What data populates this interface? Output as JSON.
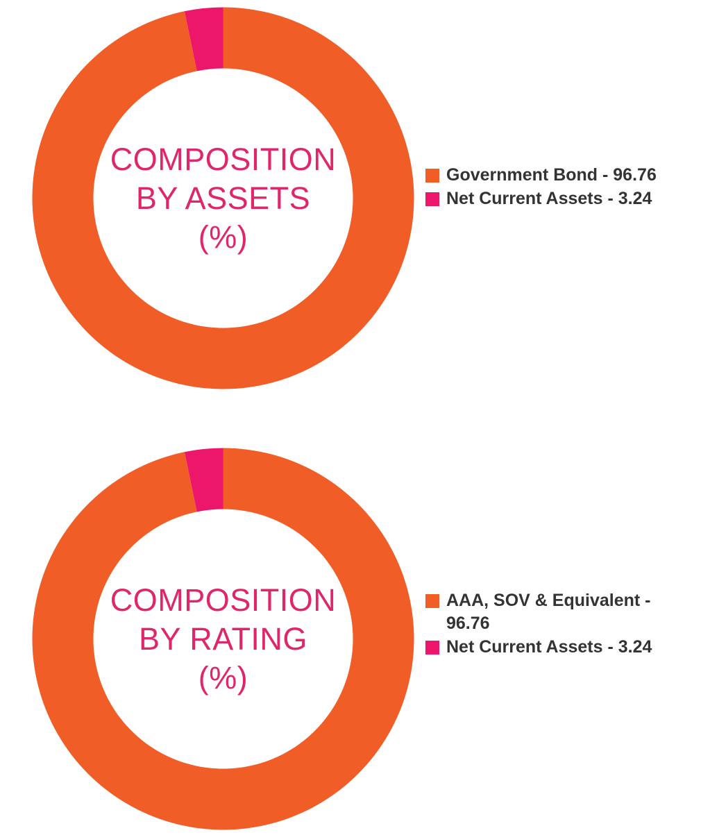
{
  "colors": {
    "orange": "#f15d27",
    "pink": "#ec176a",
    "center_text": "#e0266b"
  },
  "chart_data": [
    {
      "type": "pie",
      "categories": [
        "Government Bond",
        "Net Current Assets"
      ],
      "values": [
        96.76,
        3.24
      ],
      "colors": [
        "#f15d27",
        "#ec176a"
      ],
      "donut": true,
      "center_title_lines": [
        "COMPOSITION",
        "BY ASSETS",
        "(%)"
      ],
      "legend_labels": [
        "Government Bond - 96.76",
        "Net Current Assets - 3.24"
      ],
      "legend_position": "right"
    },
    {
      "type": "pie",
      "categories": [
        "AAA, SOV & Equivalent",
        "Net Current Assets"
      ],
      "values": [
        96.76,
        3.24
      ],
      "colors": [
        "#f15d27",
        "#ec176a"
      ],
      "donut": true,
      "center_title_lines": [
        "COMPOSITION",
        "BY RATING",
        "(%)"
      ],
      "legend_labels": [
        "AAA, SOV & Equivalent - 96.76",
        "Net Current Assets - 3.24"
      ],
      "legend_position": "right"
    }
  ]
}
